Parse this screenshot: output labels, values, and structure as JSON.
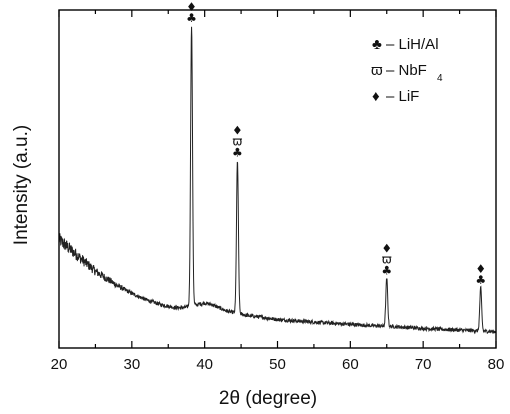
{
  "chart_data": {
    "type": "line",
    "title": "",
    "xlabel": "2θ (degree)",
    "ylabel": "Intensity (a.u.)",
    "xlim": [
      20,
      80
    ],
    "ylim": [
      0,
      100
    ],
    "x_ticks": [
      "20",
      "30",
      "40",
      "50",
      "60",
      "70",
      "80"
    ],
    "grid": false,
    "legend_position": "top-right",
    "legend": [
      {
        "symbol": "♣",
        "text": "– LiH/Al"
      },
      {
        "symbol": "ϖ",
        "text": "– NbF",
        "subscript": "4"
      },
      {
        "symbol": "♦",
        "text": "– LiF"
      }
    ],
    "peaks": [
      {
        "x": 38.2,
        "height": 88,
        "markers": [
          "♦",
          "♣"
        ]
      },
      {
        "x": 44.5,
        "height": 48,
        "markers": [
          "♦",
          "ϖ",
          "♣"
        ]
      },
      {
        "x": 65.0,
        "height": 15,
        "markers": [
          "♦",
          "ϖ",
          "♣"
        ]
      },
      {
        "x": 77.9,
        "height": 13.5,
        "markers": [
          "♦",
          "♣"
        ]
      }
    ],
    "series": [
      {
        "x": [
          20,
          21,
          22,
          23,
          24,
          25,
          26,
          27,
          28,
          30,
          32,
          34,
          36,
          37,
          38,
          39,
          40,
          41,
          42,
          43,
          44,
          45,
          46,
          48,
          50,
          55,
          60,
          62,
          64,
          66,
          68,
          70,
          72,
          74,
          76,
          78,
          80
        ],
        "values": [
          31,
          29,
          27,
          25,
          23,
          21,
          19.5,
          18,
          16.5,
          14,
          12,
          10.5,
          9.5,
          9.5,
          10,
          10.5,
          11,
          10.5,
          9.5,
          8.5,
          8,
          7.5,
          7,
          6.5,
          5.8,
          5,
          4.3,
          4,
          3.8,
          3.6,
          3.3,
          3,
          2.8,
          2.6,
          2.4,
          2.2,
          2
        ]
      }
    ]
  }
}
